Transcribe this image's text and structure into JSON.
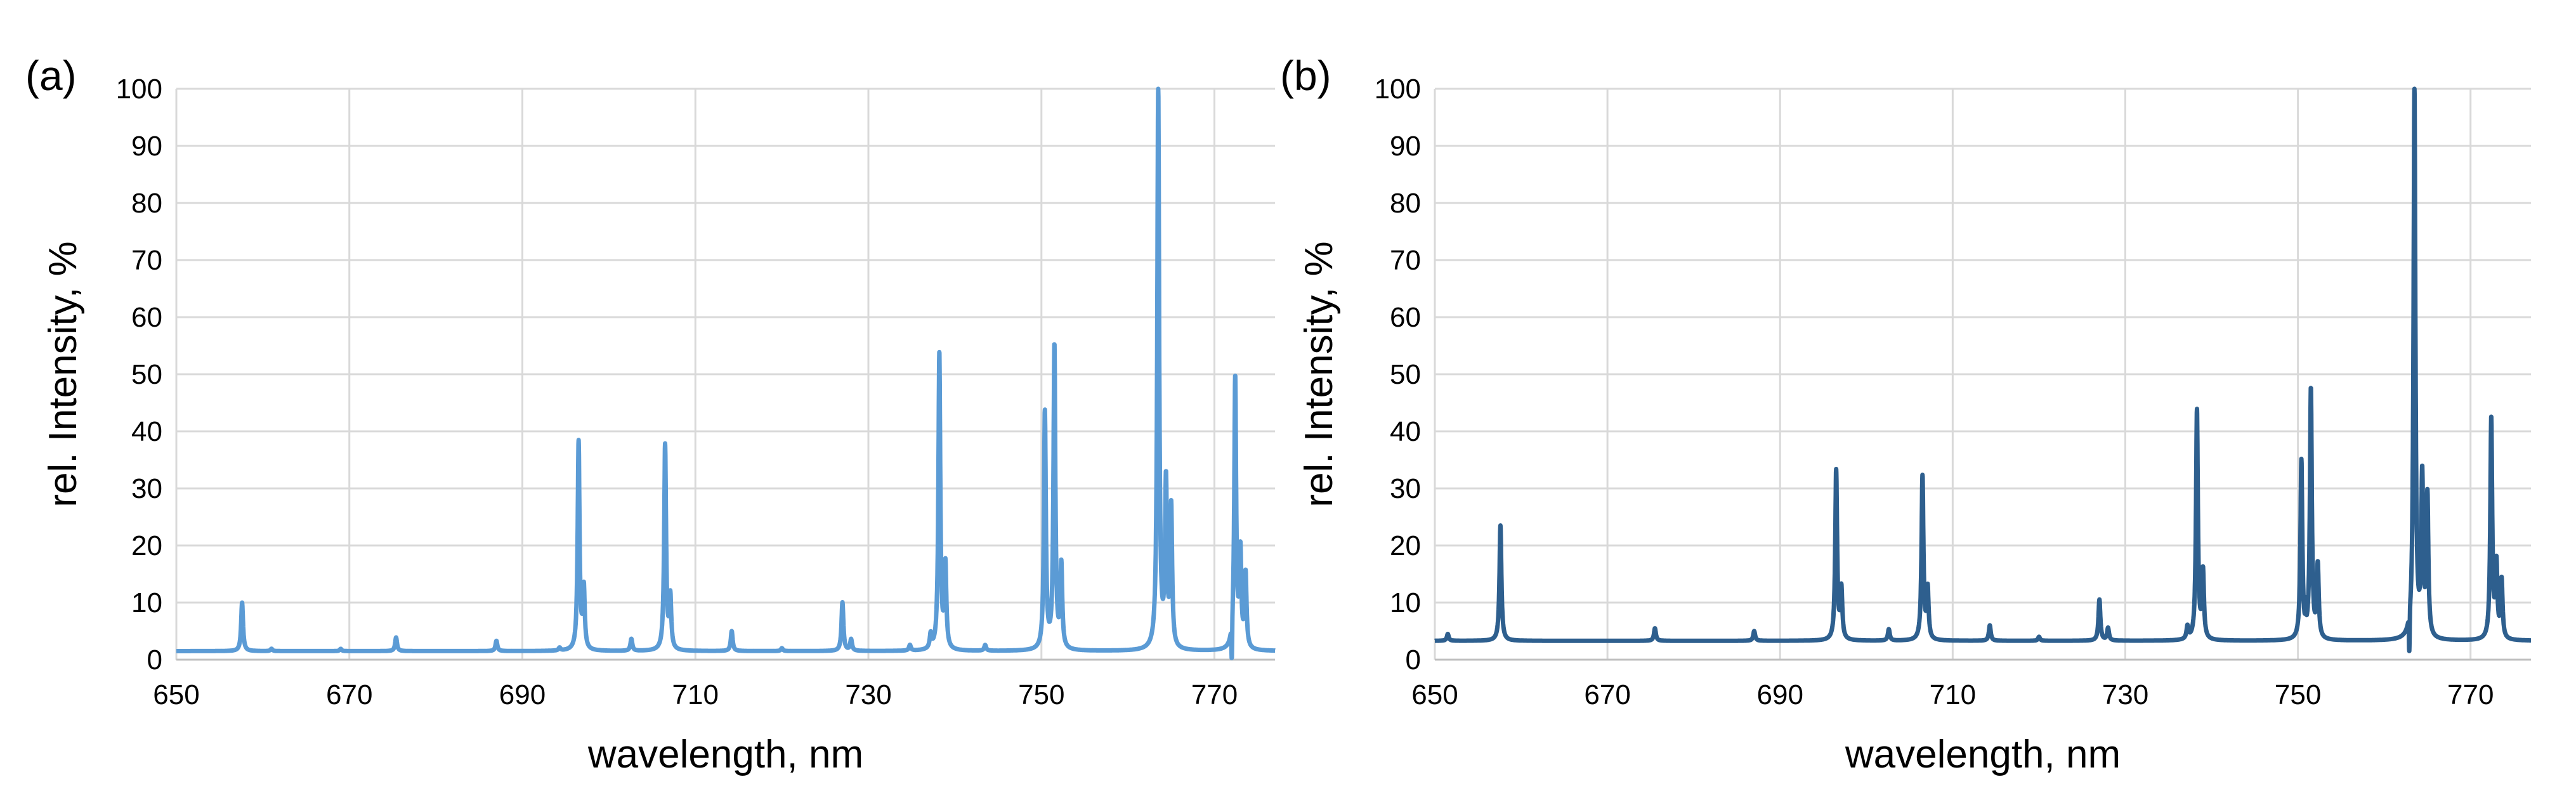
{
  "chart_data": [
    {
      "type": "line",
      "panel_label": "(a)",
      "xlabel": "wavelength, nm",
      "ylabel": "rel. Intensity, %",
      "xlim": [
        650,
        777
      ],
      "ylim": [
        0,
        100
      ],
      "xticks": [
        650,
        670,
        690,
        710,
        730,
        750,
        770
      ],
      "yticks": [
        0,
        10,
        20,
        30,
        40,
        50,
        60,
        70,
        80,
        90,
        100
      ],
      "grid": true,
      "color": "#5b9bd5",
      "baseline": 1.5,
      "peaks": [
        {
          "x": 657.6,
          "y": 10
        },
        {
          "x": 661.0,
          "y": 1.9
        },
        {
          "x": 669.0,
          "y": 1.9
        },
        {
          "x": 675.4,
          "y": 3.9
        },
        {
          "x": 687.0,
          "y": 3.3
        },
        {
          "x": 694.3,
          "y": 2.0
        },
        {
          "x": 696.5,
          "y": 38
        },
        {
          "x": 697.1,
          "y": 12
        },
        {
          "x": 702.6,
          "y": 3.6
        },
        {
          "x": 706.5,
          "y": 37.5
        },
        {
          "x": 707.1,
          "y": 10.5
        },
        {
          "x": 714.2,
          "y": 5.0
        },
        {
          "x": 720.0,
          "y": 2.0
        },
        {
          "x": 727.0,
          "y": 10
        },
        {
          "x": 728.0,
          "y": 3.5
        },
        {
          "x": 734.8,
          "y": 2.5
        },
        {
          "x": 737.2,
          "y": 4.0
        },
        {
          "x": 738.2,
          "y": 53.5
        },
        {
          "x": 738.9,
          "y": 16
        },
        {
          "x": 743.5,
          "y": 2.5
        },
        {
          "x": 750.4,
          "y": 43
        },
        {
          "x": 751.5,
          "y": 54.5
        },
        {
          "x": 752.3,
          "y": 16
        },
        {
          "x": 763.5,
          "y": 100
        },
        {
          "x": 764.4,
          "y": 30
        },
        {
          "x": 765.0,
          "y": 26
        },
        {
          "x": 772.4,
          "y": 49
        },
        {
          "x": 773.0,
          "y": 18
        },
        {
          "x": 773.6,
          "y": 14.5
        }
      ],
      "dips": [
        {
          "x": 772.0,
          "y": 0.2
        }
      ]
    },
    {
      "type": "line",
      "panel_label": "(b)",
      "xlabel": "wavelength, nm",
      "ylabel": "rel. Intensity, %",
      "xlim": [
        650,
        777
      ],
      "ylim": [
        0,
        100
      ],
      "xticks": [
        650,
        670,
        690,
        710,
        730,
        750,
        770
      ],
      "yticks": [
        0,
        10,
        20,
        30,
        40,
        50,
        60,
        70,
        80,
        90,
        100
      ],
      "grid": true,
      "color": "#2e5f8e",
      "baseline": 3.3,
      "peaks": [
        {
          "x": 651.5,
          "y": 4.5
        },
        {
          "x": 657.6,
          "y": 23.5
        },
        {
          "x": 675.5,
          "y": 5.5
        },
        {
          "x": 687.0,
          "y": 5.0
        },
        {
          "x": 696.5,
          "y": 33
        },
        {
          "x": 697.1,
          "y": 12
        },
        {
          "x": 702.6,
          "y": 5.3
        },
        {
          "x": 706.5,
          "y": 32
        },
        {
          "x": 707.1,
          "y": 12
        },
        {
          "x": 714.3,
          "y": 6.0
        },
        {
          "x": 720.0,
          "y": 4.0
        },
        {
          "x": 727.0,
          "y": 10.5
        },
        {
          "x": 728.0,
          "y": 5.5
        },
        {
          "x": 737.2,
          "y": 5.5
        },
        {
          "x": 738.3,
          "y": 43.5
        },
        {
          "x": 739.0,
          "y": 15
        },
        {
          "x": 750.4,
          "y": 34.5
        },
        {
          "x": 751.5,
          "y": 47
        },
        {
          "x": 752.3,
          "y": 16
        },
        {
          "x": 763.5,
          "y": 100
        },
        {
          "x": 764.4,
          "y": 31
        },
        {
          "x": 765.0,
          "y": 28
        },
        {
          "x": 772.4,
          "y": 42
        },
        {
          "x": 773.0,
          "y": 16
        },
        {
          "x": 773.6,
          "y": 13.5
        }
      ],
      "dips": [
        {
          "x": 750.9,
          "y": 11
        },
        {
          "x": 762.9,
          "y": 1.5
        }
      ]
    }
  ]
}
